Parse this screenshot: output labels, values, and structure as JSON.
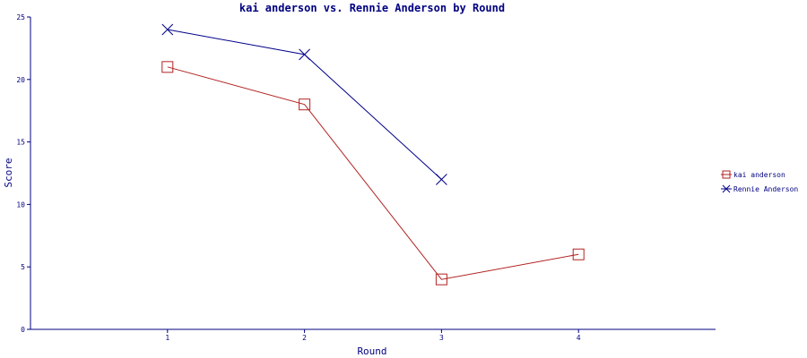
{
  "chart_data": {
    "type": "line",
    "title": "kai anderson vs. Rennie Anderson by Round",
    "xlabel": "Round",
    "ylabel": "Score",
    "x": [
      1,
      2,
      3,
      4
    ],
    "xlim": [
      0,
      5
    ],
    "ylim": [
      0,
      25
    ],
    "yticks": [
      0,
      5,
      10,
      15,
      20,
      25
    ],
    "grid": false,
    "legend_position": "right",
    "series": [
      {
        "name": "kai anderson",
        "x": [
          1,
          2,
          3,
          4
        ],
        "values": [
          21,
          18,
          4,
          6
        ],
        "color": "#b22222",
        "marker": "square"
      },
      {
        "name": "Rennie Anderson",
        "x": [
          1,
          2,
          3
        ],
        "values": [
          24,
          22,
          12
        ],
        "color": "#00008b",
        "marker": "x"
      }
    ]
  }
}
